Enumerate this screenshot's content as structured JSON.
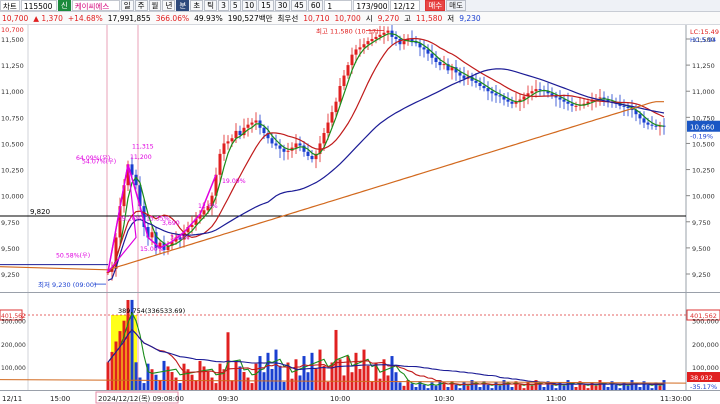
{
  "toolbar": {
    "chart_label": "차트",
    "code": "115500",
    "badge": "신",
    "stock_name": "케이씨에스",
    "periods": [
      "일",
      "주",
      "월",
      "년",
      "분",
      "초",
      "틱"
    ],
    "intervals": [
      "3",
      "5",
      "10",
      "15",
      "30",
      "45",
      "60"
    ],
    "count": "1",
    "page": "173/900",
    "date": "12/12",
    "buy_label": "매수",
    "sell_label": "매도"
  },
  "infobar": {
    "price": "10,700",
    "change": "▲ 1,370",
    "change_pct": "+14.68%",
    "volume": "17,991,855",
    "vol_ratio": "366.06%",
    "other_pct": "49.93%",
    "amount": "190,527백만",
    "prefered_label": "최우선",
    "bid": "10,710",
    "ask": "10,700",
    "open_label": "시",
    "open": "9,270",
    "high_label": "고",
    "high": "11,580",
    "low_label": "저",
    "low": "9,230"
  },
  "price_axis": {
    "ticks": [
      "11,500",
      "11,250",
      "11,000",
      "10,750",
      "10,500",
      "10,250",
      "10,000",
      "9,750",
      "9,500",
      "9,250"
    ],
    "top_left": "LC:15.49",
    "top_left2": "HC:5.94",
    "current_price": "10,660",
    "current_pct": "-0.19%",
    "ref_left": "9,820",
    "left_labels": [
      "11,500",
      "11,250",
      "11,000",
      "10,750",
      "10,500",
      "10,250",
      "10,000",
      "9,750",
      "9,500",
      "9,250"
    ],
    "left_top_price": "10,700",
    "left_top_pct": "-1.10%"
  },
  "volume_axis": {
    "ticks": [
      "300,000",
      "200,000",
      "100,000"
    ],
    "top_value": "401,562",
    "current_value": "38,932",
    "current_pct": "-35.17%"
  },
  "annotations": {
    "high": "최고 11,580 (10:17)",
    "low": "최저 9,230 (09:00)",
    "pink_labels": [
      "64.09%(우)",
      "54.07%(우)",
      "11,315",
      "11,200",
      "39.26%",
      "15.35%",
      "3,690",
      "50.58%(우)",
      "15.00%",
      "19.09%",
      "3.89%",
      "12.6%"
    ],
    "volume_note": "389,754(336533.69)"
  },
  "xaxis": {
    "labels": [
      "12/11",
      "15:00",
      "2024/12/12(목) 09:08:00",
      "09:30",
      "10:00",
      "10:30",
      "11:00",
      "11:30:00"
    ]
  },
  "chart_data": {
    "type": "line",
    "price_range": [
      9150,
      11650
    ],
    "volume_range": [
      0,
      420000
    ],
    "ma_colors": {
      "ma5": "#1a8c1a",
      "ma20": "#c01b1b",
      "ma60": "#1c1c96",
      "ma120": "#d2691e"
    }
  }
}
